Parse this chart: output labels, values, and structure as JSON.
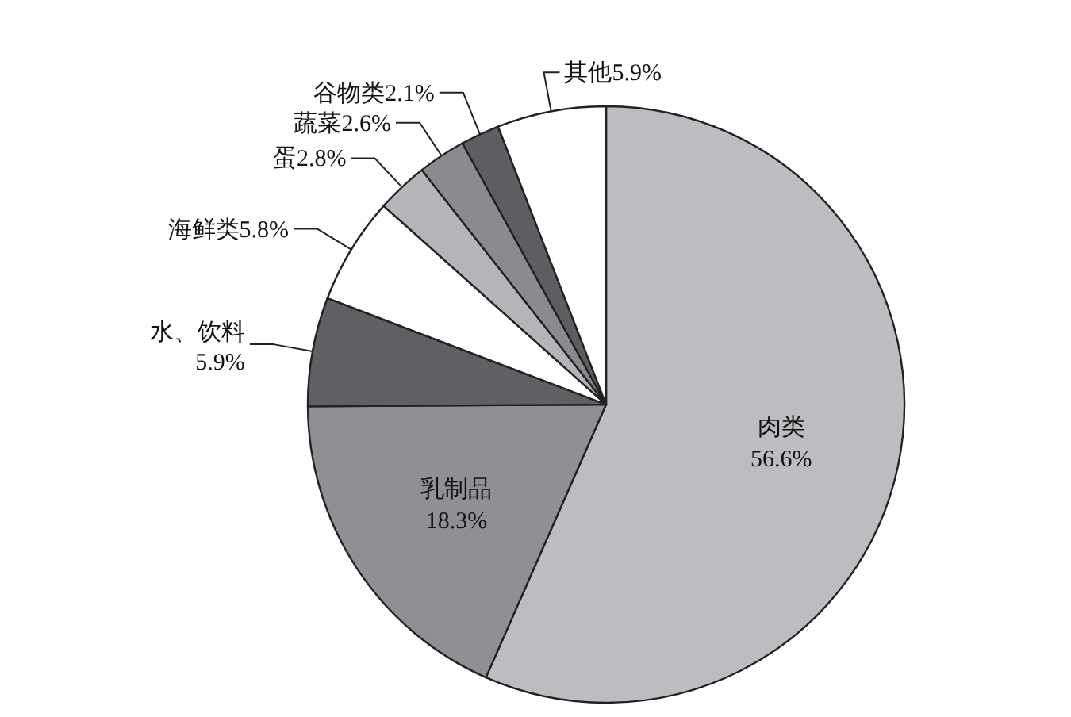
{
  "chart_data": {
    "type": "pie",
    "categories": [
      "肉类",
      "乳制品",
      "水、饮料",
      "海鲜类",
      "蛋",
      "蔬菜",
      "谷物类",
      "其他"
    ],
    "values": [
      56.6,
      18.3,
      5.9,
      5.8,
      2.8,
      2.6,
      2.1,
      5.9
    ],
    "value_labels": [
      "56.6%",
      "18.3%",
      "5.9%",
      "5.8%",
      "2.8%",
      "2.6%",
      "2.1%",
      "5.9%"
    ],
    "colors": [
      "#bcbdc0",
      "#8f9094",
      "#5f6064",
      "#ffffff",
      "#b4b5b8",
      "#8a8b8e",
      "#5d5e61",
      "#ffffff"
    ]
  }
}
